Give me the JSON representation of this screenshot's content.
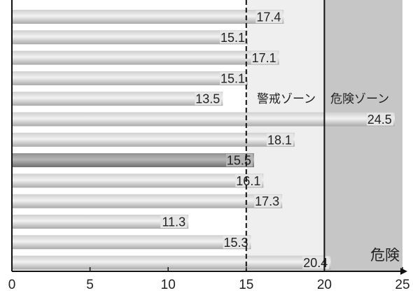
{
  "chart_data": {
    "type": "bar",
    "orientation": "horizontal",
    "values": [
      17.4,
      15.1,
      17.1,
      15.1,
      13.5,
      24.5,
      18.1,
      15.5,
      16.1,
      17.3,
      11.3,
      15.3,
      20.4
    ],
    "value_labels": [
      "17.4",
      "15.1",
      "17.1",
      "15.1",
      "13.5",
      "24.5",
      "18.1",
      "15.5",
      "16.1",
      "17.3",
      "11.3",
      "15.3",
      "20.4"
    ],
    "highlight_index": 7,
    "xlim": [
      0,
      25
    ],
    "x_ticks": [
      "0",
      "5",
      "10",
      "15",
      "20",
      "25"
    ],
    "thresholds": [
      15,
      20
    ],
    "zones": [
      {
        "label": "警戒ゾーン",
        "from": 15,
        "to": 20,
        "color": "#efefef"
      },
      {
        "label": "危険ゾーン",
        "from": 20,
        "to": 25,
        "color": "#c6c6c6"
      }
    ],
    "danger_label": "危険",
    "grid": false
  }
}
